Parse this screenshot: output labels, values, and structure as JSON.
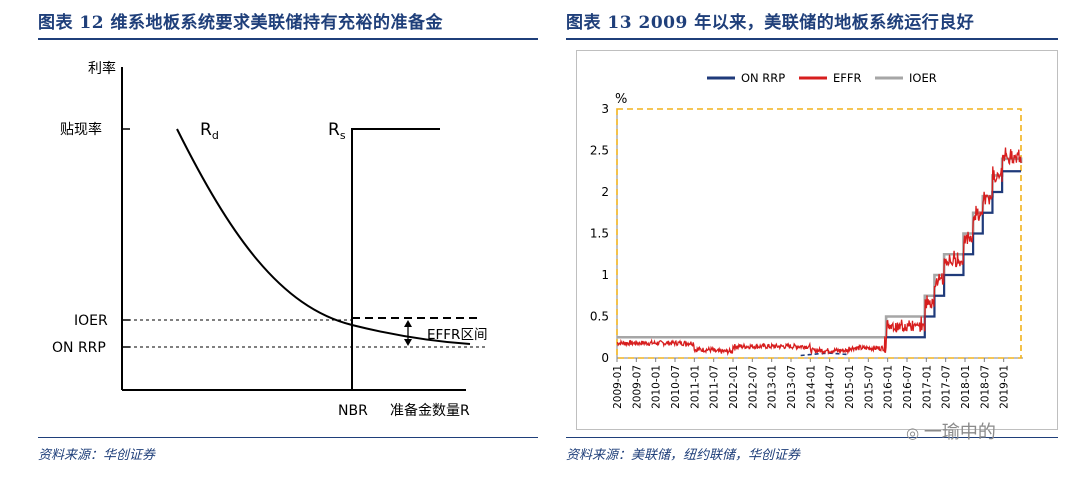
{
  "left_figure": {
    "title": "图表 12   维系地板系统要求美联储持有充裕的准备金",
    "source": "资料来源：华创证券"
  },
  "right_figure": {
    "title": "图表 13   2009 年以来，美联储的地板系统运行良好",
    "source": "资料来源：美联储，纽约联储，华创证券"
  },
  "watermark": "一瑜中的",
  "chart_data": [
    {
      "type": "line",
      "title": "",
      "ylabel": "利率",
      "xlabel": "准备金数量R",
      "y_ticks": [
        "贴现率",
        "IOER",
        "ON RRP"
      ],
      "x_ticks": [
        "NBR"
      ],
      "curve_labels": {
        "demand": "R",
        "demand_sub": "d",
        "supply": "R",
        "supply_sub": "s"
      },
      "band_label": "EFFR区间",
      "schematic_levels": {
        "discount_rate": 0.85,
        "ioer": 0.25,
        "on_rrp": 0.15,
        "nbr": 0.58
      }
    },
    {
      "type": "line",
      "title": "",
      "unit": "%",
      "ylim": [
        0,
        3
      ],
      "y_ticks": [
        "0",
        "0.5",
        "1",
        "1.5",
        "2",
        "2.5",
        "3"
      ],
      "x_ticks": [
        "2009-01",
        "2009-07",
        "2010-01",
        "2010-07",
        "2011-01",
        "2011-07",
        "2012-01",
        "2012-07",
        "2013-01",
        "2013-07",
        "2014-01",
        "2014-07",
        "2015-01",
        "2015-07",
        "2016-01",
        "2016-07",
        "2017-01",
        "2017-07",
        "2018-01",
        "2018-07",
        "2019-01"
      ],
      "legend": [
        {
          "name": "ON RRP",
          "color": "#1f3a7a"
        },
        {
          "name": "EFFR",
          "color": "#d71e1e"
        },
        {
          "name": "IOER",
          "color": "#a6a6a6"
        }
      ],
      "series": [
        {
          "name": "IOER",
          "steps": [
            [
              2009.0,
              0.25
            ],
            [
              2015.96,
              0.5
            ],
            [
              2016.96,
              0.75
            ],
            [
              2017.21,
              1.0
            ],
            [
              2017.46,
              1.25
            ],
            [
              2017.96,
              1.5
            ],
            [
              2018.21,
              1.75
            ],
            [
              2018.46,
              1.95
            ],
            [
              2018.71,
              2.2
            ],
            [
              2018.96,
              2.4
            ],
            [
              2019.45,
              2.35
            ]
          ]
        },
        {
          "name": "ON RRP",
          "steps": [
            [
              2013.75,
              0.05
            ],
            [
              2015.0,
              0.05
            ],
            [
              2015.96,
              0.25
            ],
            [
              2016.96,
              0.5
            ],
            [
              2017.21,
              0.75
            ],
            [
              2017.46,
              1.0
            ],
            [
              2017.96,
              1.25
            ],
            [
              2018.21,
              1.5
            ],
            [
              2018.46,
              1.75
            ],
            [
              2018.71,
              2.0
            ],
            [
              2018.96,
              2.25
            ],
            [
              2019.45,
              2.25
            ]
          ]
        },
        {
          "name": "EFFR",
          "approx_levels": [
            [
              2009.0,
              0.18
            ],
            [
              2010.0,
              0.18
            ],
            [
              2011.0,
              0.1
            ],
            [
              2011.5,
              0.08
            ],
            [
              2012.0,
              0.14
            ],
            [
              2013.0,
              0.14
            ],
            [
              2014.0,
              0.09
            ],
            [
              2015.0,
              0.12
            ],
            [
              2015.96,
              0.37
            ],
            [
              2016.96,
              0.66
            ],
            [
              2017.21,
              0.91
            ],
            [
              2017.46,
              1.16
            ],
            [
              2017.96,
              1.42
            ],
            [
              2018.21,
              1.7
            ],
            [
              2018.46,
              1.91
            ],
            [
              2018.71,
              2.18
            ],
            [
              2018.96,
              2.4
            ],
            [
              2019.45,
              2.38
            ]
          ]
        }
      ]
    }
  ]
}
